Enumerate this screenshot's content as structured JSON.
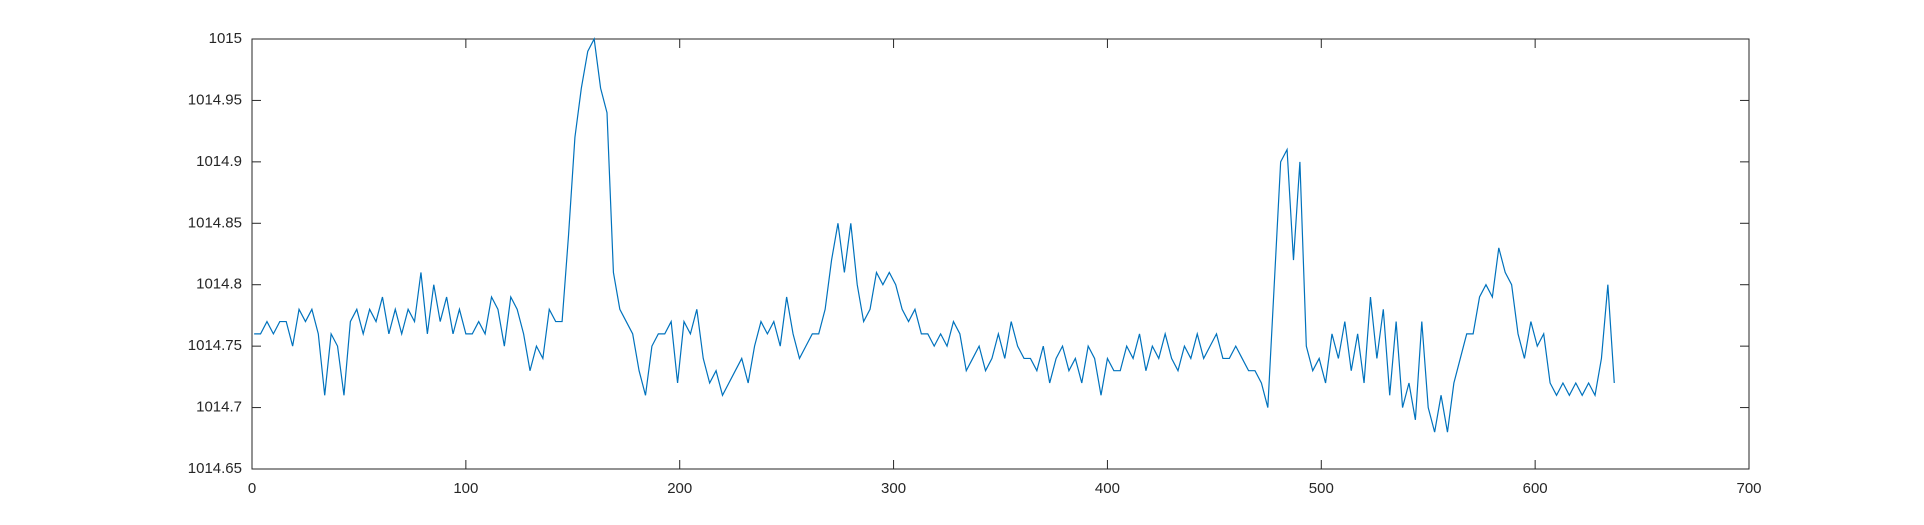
{
  "chart_data": {
    "type": "line",
    "color": "#0072bd",
    "grid": false,
    "box": true,
    "xlim": [
      0,
      700
    ],
    "xticks": [
      0,
      100,
      200,
      300,
      400,
      500,
      600,
      700
    ],
    "ylim": [
      1014.65,
      1015
    ],
    "yticks": [
      1014.65,
      1014.7,
      1014.75,
      1014.8,
      1014.85,
      1014.9,
      1014.95,
      1015
    ],
    "x": [
      1,
      4,
      7,
      10,
      13,
      16,
      19,
      22,
      25,
      28,
      31,
      34,
      37,
      40,
      43,
      46,
      49,
      52,
      55,
      58,
      61,
      64,
      67,
      70,
      73,
      76,
      79,
      82,
      85,
      88,
      91,
      94,
      97,
      100,
      103,
      106,
      109,
      112,
      115,
      118,
      121,
      124,
      127,
      130,
      133,
      136,
      139,
      142,
      145,
      148,
      151,
      154,
      157,
      160,
      163,
      166,
      169,
      172,
      175,
      178,
      181,
      184,
      187,
      190,
      193,
      196,
      199,
      202,
      205,
      208,
      211,
      214,
      217,
      220,
      223,
      226,
      229,
      232,
      235,
      238,
      241,
      244,
      247,
      250,
      253,
      256,
      259,
      262,
      265,
      268,
      271,
      274,
      277,
      280,
      283,
      286,
      289,
      292,
      295,
      298,
      301,
      304,
      307,
      310,
      313,
      316,
      319,
      322,
      325,
      328,
      331,
      334,
      337,
      340,
      343,
      346,
      349,
      352,
      355,
      358,
      361,
      364,
      367,
      370,
      373,
      376,
      379,
      382,
      385,
      388,
      391,
      394,
      397,
      400,
      403,
      406,
      409,
      412,
      415,
      418,
      421,
      424,
      427,
      430,
      433,
      436,
      439,
      442,
      445,
      448,
      451,
      454,
      457,
      460,
      463,
      466,
      469,
      472,
      475,
      478,
      481,
      484,
      487,
      490,
      493,
      496,
      499,
      502,
      505,
      508,
      511,
      514,
      517,
      520,
      523,
      526,
      529,
      532,
      535,
      538,
      541,
      544,
      547,
      550,
      553,
      556,
      559,
      562,
      565,
      568,
      571,
      574,
      577,
      580,
      583,
      586,
      589,
      592,
      595,
      598,
      601,
      604,
      607,
      610,
      613,
      616,
      619,
      622,
      625,
      628,
      631,
      634,
      637
    ],
    "values": [
      1014.76,
      1014.76,
      1014.77,
      1014.76,
      1014.77,
      1014.77,
      1014.75,
      1014.78,
      1014.77,
      1014.78,
      1014.76,
      1014.71,
      1014.76,
      1014.75,
      1014.71,
      1014.77,
      1014.78,
      1014.76,
      1014.78,
      1014.77,
      1014.79,
      1014.76,
      1014.78,
      1014.76,
      1014.78,
      1014.77,
      1014.81,
      1014.76,
      1014.8,
      1014.77,
      1014.79,
      1014.76,
      1014.78,
      1014.76,
      1014.76,
      1014.77,
      1014.76,
      1014.79,
      1014.78,
      1014.75,
      1014.79,
      1014.78,
      1014.76,
      1014.73,
      1014.75,
      1014.74,
      1014.78,
      1014.77,
      1014.77,
      1014.84,
      1014.92,
      1014.96,
      1014.99,
      1015,
      1014.96,
      1014.94,
      1014.81,
      1014.78,
      1014.77,
      1014.76,
      1014.73,
      1014.71,
      1014.75,
      1014.76,
      1014.76,
      1014.77,
      1014.72,
      1014.77,
      1014.76,
      1014.78,
      1014.74,
      1014.72,
      1014.73,
      1014.71,
      1014.72,
      1014.73,
      1014.74,
      1014.72,
      1014.75,
      1014.77,
      1014.76,
      1014.77,
      1014.75,
      1014.79,
      1014.76,
      1014.74,
      1014.75,
      1014.76,
      1014.76,
      1014.78,
      1014.82,
      1014.85,
      1014.81,
      1014.85,
      1014.8,
      1014.77,
      1014.78,
      1014.81,
      1014.8,
      1014.81,
      1014.8,
      1014.78,
      1014.77,
      1014.78,
      1014.76,
      1014.76,
      1014.75,
      1014.76,
      1014.75,
      1014.77,
      1014.76,
      1014.73,
      1014.74,
      1014.75,
      1014.73,
      1014.74,
      1014.76,
      1014.74,
      1014.77,
      1014.75,
      1014.74,
      1014.74,
      1014.73,
      1014.75,
      1014.72,
      1014.74,
      1014.75,
      1014.73,
      1014.74,
      1014.72,
      1014.75,
      1014.74,
      1014.71,
      1014.74,
      1014.73,
      1014.73,
      1014.75,
      1014.74,
      1014.76,
      1014.73,
      1014.75,
      1014.74,
      1014.76,
      1014.74,
      1014.73,
      1014.75,
      1014.74,
      1014.76,
      1014.74,
      1014.75,
      1014.76,
      1014.74,
      1014.74,
      1014.75,
      1014.74,
      1014.73,
      1014.73,
      1014.72,
      1014.7,
      1014.8,
      1014.9,
      1014.91,
      1014.82,
      1014.9,
      1014.75,
      1014.73,
      1014.74,
      1014.72,
      1014.76,
      1014.74,
      1014.77,
      1014.73,
      1014.76,
      1014.72,
      1014.79,
      1014.74,
      1014.78,
      1014.71,
      1014.77,
      1014.7,
      1014.72,
      1014.69,
      1014.77,
      1014.7,
      1014.68,
      1014.71,
      1014.68,
      1014.72,
      1014.74,
      1014.76,
      1014.76,
      1014.79,
      1014.8,
      1014.79,
      1014.83,
      1014.81,
      1014.8,
      1014.76,
      1014.74,
      1014.77,
      1014.75,
      1014.76,
      1014.72,
      1014.71,
      1014.72,
      1014.71,
      1014.72,
      1014.71,
      1014.72,
      1014.71,
      1014.74,
      1014.8,
      1014.72
    ]
  }
}
